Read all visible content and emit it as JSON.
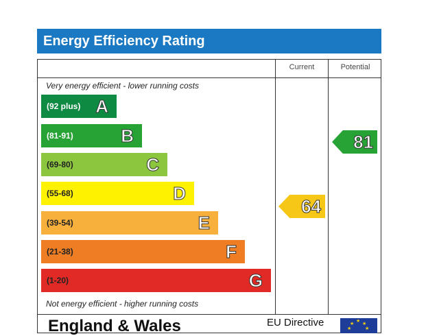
{
  "title": "Energy Efficiency Rating",
  "columns": {
    "current": "Current",
    "potential": "Potential"
  },
  "notes": {
    "top": "Very energy efficient - lower running costs",
    "bottom": "Not energy efficient - higher running costs"
  },
  "bands": [
    {
      "range": "(92 plus)",
      "letter": "A",
      "color": "#0f8a43",
      "text_color": "#ffffff"
    },
    {
      "range": "(81-91)",
      "letter": "B",
      "color": "#27a336",
      "text_color": "#ffffff"
    },
    {
      "range": "(69-80)",
      "letter": "C",
      "color": "#8cc63f",
      "text_color": "#222222"
    },
    {
      "range": "(55-68)",
      "letter": "D",
      "color": "#fff200",
      "text_color": "#222222"
    },
    {
      "range": "(39-54)",
      "letter": "E",
      "color": "#f7b03c",
      "text_color": "#222222"
    },
    {
      "range": "(21-38)",
      "letter": "F",
      "color": "#ee7d23",
      "text_color": "#222222"
    },
    {
      "range": "(1-20)",
      "letter": "G",
      "color": "#e12a26",
      "text_color": "#222222"
    }
  ],
  "ratings": {
    "current": {
      "value": "64",
      "band": "D",
      "color": "#f6c717"
    },
    "potential": {
      "value": "81",
      "band": "B",
      "color": "#27a336"
    }
  },
  "footer": {
    "region": "England & Wales",
    "directive": "EU Directive"
  }
}
